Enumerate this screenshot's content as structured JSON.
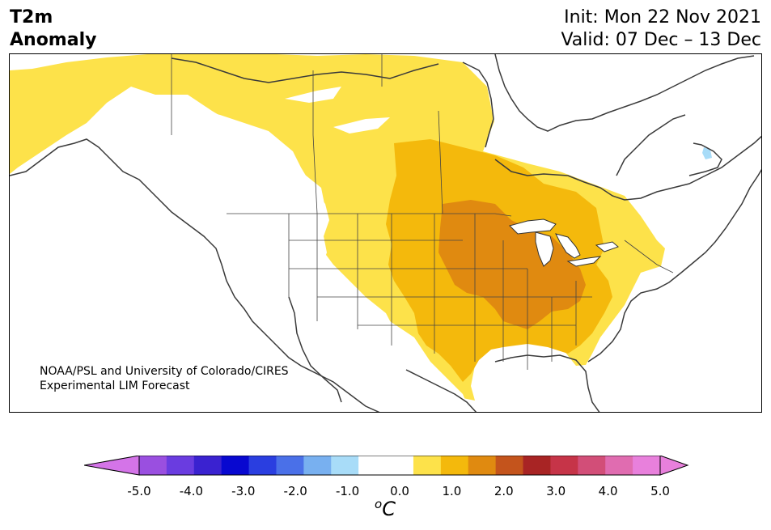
{
  "header": {
    "variable_line1": "T2m",
    "variable_line2": "Anomaly",
    "init": "Init: Mon 22 Nov 2021",
    "valid": "Valid: 07 Dec – 13 Dec"
  },
  "credit": {
    "line1": "NOAA/PSL and University of Colorado/CIRES",
    "line2": "Experimental LIM Forecast"
  },
  "colorbar": {
    "unit_base": "C",
    "unit_sup": "o",
    "ticks": [
      "-5.0",
      "-4.0",
      "-3.0",
      "-2.0",
      "-1.0",
      "0.0",
      "1.0",
      "2.0",
      "3.0",
      "4.0",
      "5.0"
    ],
    "colors": [
      "#9a4fe0",
      "#6a3ce0",
      "#3a22d0",
      "#0808d0",
      "#2a3ee0",
      "#4a70e8",
      "#78b0f0",
      "#a8dcf8",
      "#ffffff",
      "#ffffff",
      "#fde24a",
      "#f4b90c",
      "#e08a10",
      "#c4541c",
      "#a82424",
      "#c63448",
      "#d24e78",
      "#e06cb0",
      "#e880dc"
    ],
    "under_color": "#d474e8",
    "over_color": "#e880dc"
  },
  "legend_colors": {
    "anomaly_0_5_to_1": "#fde24a",
    "anomaly_1_to_1_5": "#f4b90c",
    "anomaly_1_5_to_2": "#e08a10",
    "cold_1_to_0_5": "#a8dcf8"
  }
}
